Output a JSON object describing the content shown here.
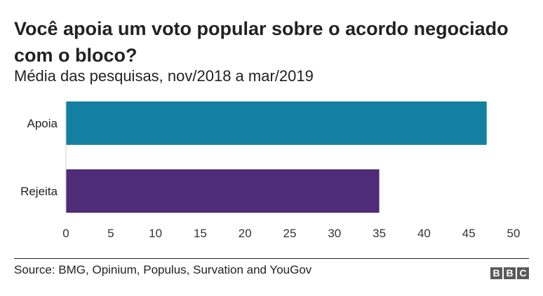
{
  "chart_data": {
    "type": "bar",
    "orientation": "horizontal",
    "title": "Você apoia um voto popular sobre o acordo negociado com o bloco?",
    "subtitle": "Média das pesquisas, nov/2018 a mar/2019",
    "categories": [
      "Apoia",
      "Rejeita"
    ],
    "values": [
      47,
      35
    ],
    "colors": [
      "#1380a1",
      "#4f2b78"
    ],
    "xlim": [
      0,
      50
    ],
    "xticks": [
      0,
      5,
      10,
      15,
      20,
      25,
      30,
      35,
      40,
      45,
      50
    ],
    "grid": false
  },
  "footer": {
    "source": "Source: BMG, Opinium, Populus, Survation and YouGov",
    "logo": [
      "B",
      "B",
      "C"
    ]
  }
}
